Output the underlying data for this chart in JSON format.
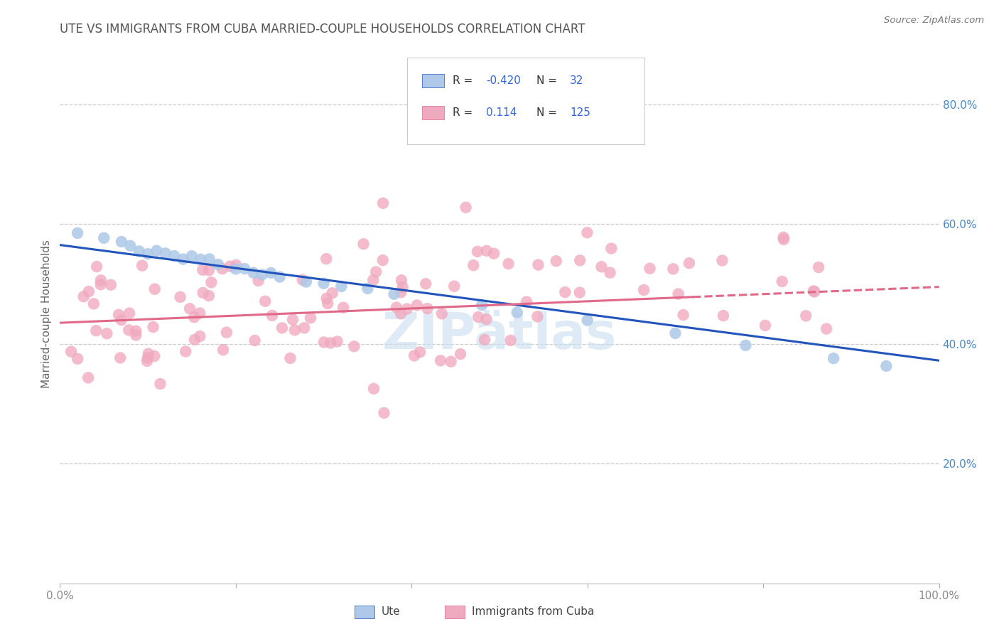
{
  "title": "UTE VS IMMIGRANTS FROM CUBA MARRIED-COUPLE HOUSEHOLDS CORRELATION CHART",
  "source_text": "Source: ZipAtlas.com",
  "ylabel": "Married-couple Households",
  "xlim": [
    0.0,
    1.0
  ],
  "ylim": [
    0.0,
    0.9
  ],
  "ute_R": -0.42,
  "ute_N": 32,
  "cuba_R": 0.114,
  "cuba_N": 125,
  "ute_color": "#adc8e8",
  "cuba_color": "#f0aac0",
  "ute_line_color": "#2255bb",
  "cuba_line_color": "#e06888",
  "background_color": "#ffffff",
  "grid_color": "#cccccc",
  "watermark_color": "#c8dff0",
  "title_color": "#555555",
  "tick_color_y": "#4488cc",
  "tick_color_x": "#888888",
  "legend_R_color": "#cc2222",
  "legend_N_color": "#333333",
  "legend_val_color": "#3366dd",
  "ute_line_start_y": 0.565,
  "ute_line_end_y": 0.372,
  "cuba_line_start_y": 0.435,
  "cuba_line_end_y": 0.495,
  "cuba_line_solid_end": 0.72
}
